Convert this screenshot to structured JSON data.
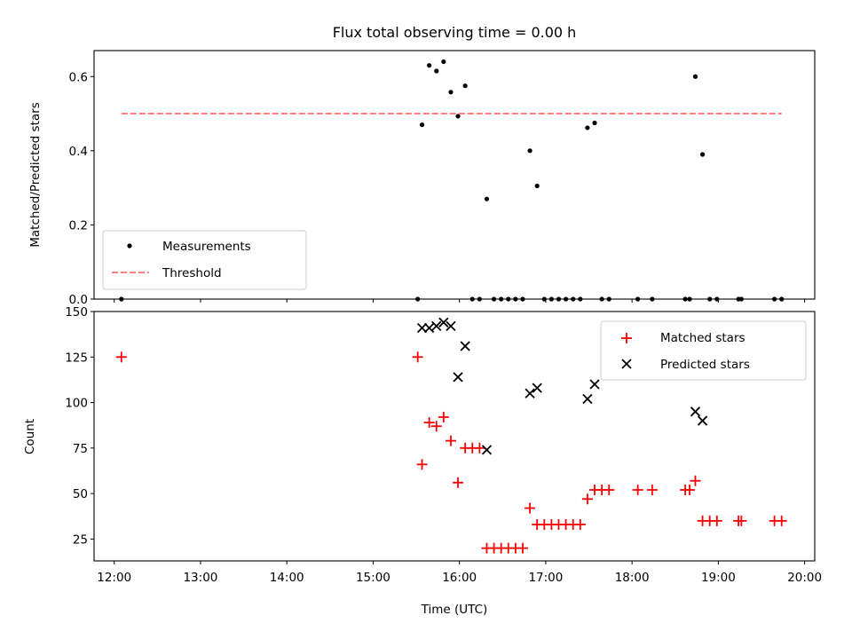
{
  "chart_data": [
    {
      "type": "scatter",
      "title": "Flux total observing time = 0.00 h",
      "xlabel": "",
      "ylabel": "Matched/Predicted stars",
      "ylim": [
        0,
        0.67
      ],
      "yticks": [
        0.0,
        0.2,
        0.4,
        0.6
      ],
      "ytick_labels": [
        "0.0",
        "0.2",
        "0.4",
        "0.6"
      ],
      "xlim": [
        "11:46",
        "20:07"
      ],
      "xticks": [
        "12:00",
        "13:00",
        "14:00",
        "15:00",
        "16:00",
        "17:00",
        "18:00",
        "19:00",
        "20:00"
      ],
      "xtick_labels_shown": false,
      "grid": false,
      "legend_position": "lower-left",
      "series": [
        {
          "name": "Measurements",
          "kind": "points",
          "color": "#000000",
          "marker": "dot",
          "points": [
            [
              "12:05",
              0.0
            ],
            [
              "15:31",
              0.0
            ],
            [
              "15:34",
              0.47
            ],
            [
              "15:39",
              0.63
            ],
            [
              "15:44",
              0.615
            ],
            [
              "15:49",
              0.64
            ],
            [
              "15:54",
              0.558
            ],
            [
              "15:59",
              0.493
            ],
            [
              "16:04",
              0.575
            ],
            [
              "16:09",
              0.0
            ],
            [
              "16:14",
              0.0
            ],
            [
              "16:19",
              0.27
            ],
            [
              "16:24",
              0.0
            ],
            [
              "16:29",
              0.0
            ],
            [
              "16:34",
              0.0
            ],
            [
              "16:39",
              0.0
            ],
            [
              "16:44",
              0.0
            ],
            [
              "16:49",
              0.4
            ],
            [
              "16:54",
              0.305
            ],
            [
              "16:59",
              0.0
            ],
            [
              "17:04",
              0.0
            ],
            [
              "17:09",
              0.0
            ],
            [
              "17:14",
              0.0
            ],
            [
              "17:19",
              0.0
            ],
            [
              "17:24",
              0.0
            ],
            [
              "17:29",
              0.462
            ],
            [
              "17:34",
              0.475
            ],
            [
              "17:39",
              0.0
            ],
            [
              "17:44",
              0.0
            ],
            [
              "18:04",
              0.0
            ],
            [
              "18:14",
              0.0
            ],
            [
              "18:37",
              0.0
            ],
            [
              "18:40",
              0.0
            ],
            [
              "18:44",
              0.6
            ],
            [
              "18:49",
              0.39
            ],
            [
              "18:54",
              0.0
            ],
            [
              "18:59",
              0.0
            ],
            [
              "19:14",
              0.0
            ],
            [
              "19:16",
              0.0
            ],
            [
              "19:39",
              0.0
            ],
            [
              "19:44",
              0.0
            ]
          ]
        },
        {
          "name": "Threshold",
          "kind": "line",
          "color": "#ff7f7f",
          "style": "dashed",
          "points": [
            [
              "12:05",
              0.5
            ],
            [
              "19:44",
              0.5
            ]
          ]
        }
      ]
    },
    {
      "type": "scatter",
      "title": "",
      "xlabel": "Time (UTC)",
      "ylabel": "Count",
      "ylim": [
        13,
        150
      ],
      "yticks": [
        25,
        50,
        75,
        100,
        125,
        150
      ],
      "ytick_labels": [
        "25",
        "50",
        "75",
        "100",
        "125",
        "150"
      ],
      "xlim": [
        "11:46",
        "20:07"
      ],
      "xticks": [
        "12:00",
        "13:00",
        "14:00",
        "15:00",
        "16:00",
        "17:00",
        "18:00",
        "19:00",
        "20:00"
      ],
      "xtick_labels": [
        "12:00",
        "13:00",
        "14:00",
        "15:00",
        "16:00",
        "17:00",
        "18:00",
        "19:00",
        "20:00"
      ],
      "grid": false,
      "legend_position": "top-right",
      "series": [
        {
          "name": "Matched stars",
          "kind": "points",
          "color": "#ff0000",
          "marker": "plus",
          "points": [
            [
              "12:05",
              125
            ],
            [
              "15:31",
              125
            ],
            [
              "15:34",
              66
            ],
            [
              "15:39",
              89
            ],
            [
              "15:44",
              87
            ],
            [
              "15:49",
              92
            ],
            [
              "15:54",
              79
            ],
            [
              "15:59",
              56
            ],
            [
              "16:04",
              75
            ],
            [
              "16:09",
              75
            ],
            [
              "16:14",
              75
            ],
            [
              "16:19",
              20
            ],
            [
              "16:24",
              20
            ],
            [
              "16:29",
              20
            ],
            [
              "16:34",
              20
            ],
            [
              "16:39",
              20
            ],
            [
              "16:44",
              20
            ],
            [
              "16:49",
              42
            ],
            [
              "16:54",
              33
            ],
            [
              "16:59",
              33
            ],
            [
              "17:04",
              33
            ],
            [
              "17:09",
              33
            ],
            [
              "17:14",
              33
            ],
            [
              "17:19",
              33
            ],
            [
              "17:24",
              33
            ],
            [
              "17:29",
              47
            ],
            [
              "17:34",
              52
            ],
            [
              "17:39",
              52
            ],
            [
              "17:44",
              52
            ],
            [
              "18:04",
              52
            ],
            [
              "18:14",
              52
            ],
            [
              "18:37",
              52
            ],
            [
              "18:40",
              52
            ],
            [
              "18:44",
              57
            ],
            [
              "18:49",
              35
            ],
            [
              "18:54",
              35
            ],
            [
              "18:59",
              35
            ],
            [
              "19:14",
              35
            ],
            [
              "19:16",
              35
            ],
            [
              "19:39",
              35
            ],
            [
              "19:44",
              35
            ]
          ]
        },
        {
          "name": "Predicted stars",
          "kind": "points",
          "color": "#000000",
          "marker": "x",
          "points": [
            [
              "15:34",
              141
            ],
            [
              "15:39",
              141
            ],
            [
              "15:44",
              142
            ],
            [
              "15:49",
              144
            ],
            [
              "15:54",
              142
            ],
            [
              "15:59",
              114
            ],
            [
              "16:04",
              131
            ],
            [
              "16:19",
              74
            ],
            [
              "16:49",
              105
            ],
            [
              "16:54",
              108
            ],
            [
              "17:29",
              102
            ],
            [
              "17:34",
              110
            ],
            [
              "18:44",
              95
            ],
            [
              "18:49",
              90
            ]
          ]
        }
      ]
    }
  ]
}
